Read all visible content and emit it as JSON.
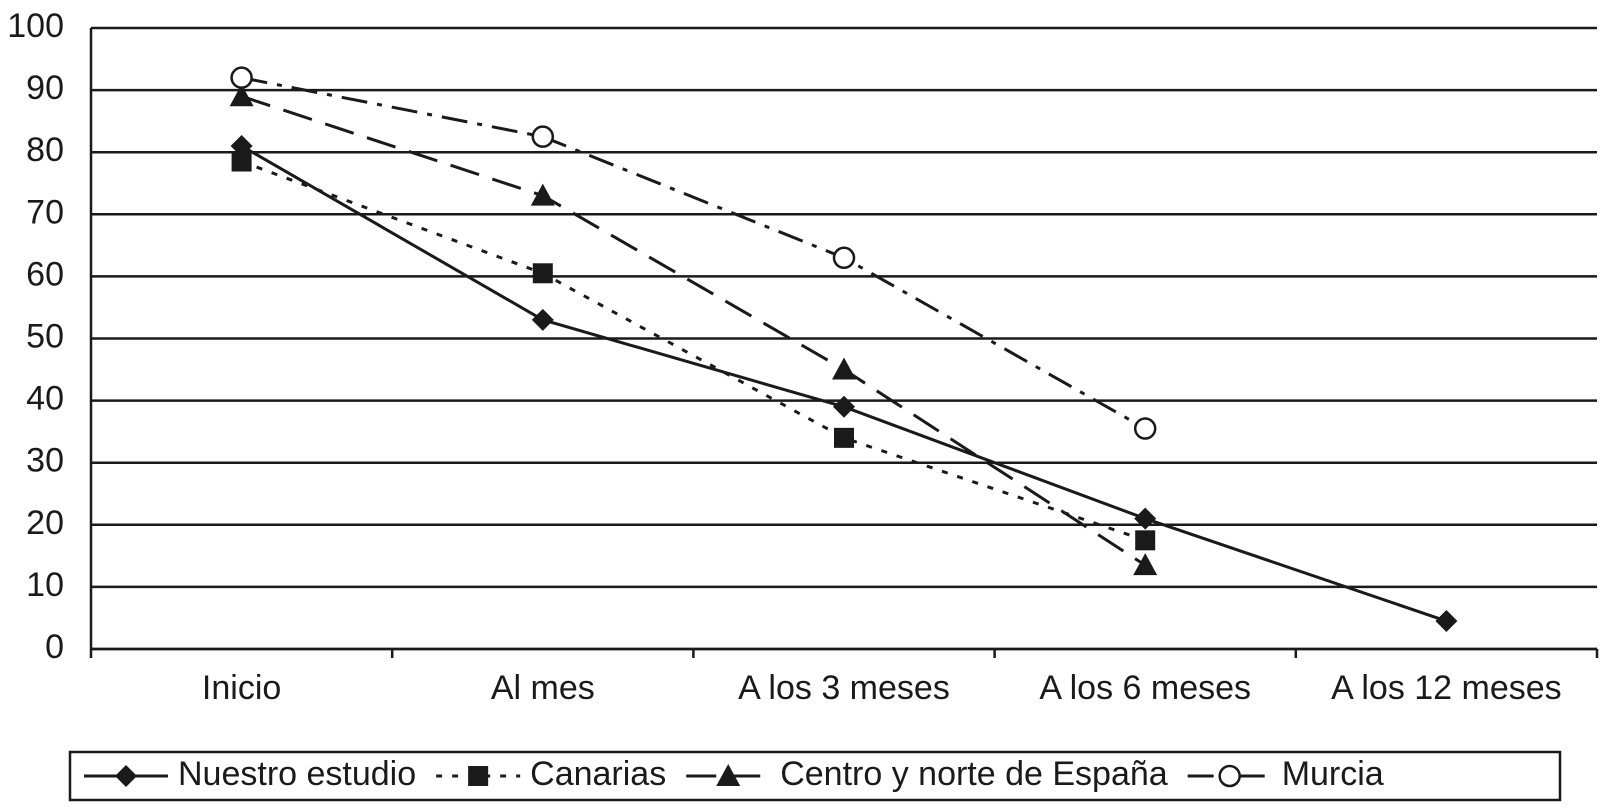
{
  "chart_data": {
    "type": "line",
    "categories": [
      "Inicio",
      "Al mes",
      "A los 3 meses",
      "A los 6 meses",
      "A los 12 meses"
    ],
    "series": [
      {
        "name": "Nuestro estudio",
        "color": "#1a1a1a",
        "marker": "diamond",
        "line_style": "solid",
        "values": [
          81,
          53,
          39,
          21,
          4.5
        ]
      },
      {
        "name": "Canarias",
        "color": "#1a1a1a",
        "marker": "square",
        "line_style": "dotted",
        "values": [
          78.5,
          60.5,
          34,
          17.5,
          null
        ]
      },
      {
        "name": "Centro y norte de España",
        "color": "#1a1a1a",
        "marker": "triangle",
        "line_style": "dashed",
        "values": [
          89,
          73,
          45,
          13.5,
          null
        ]
      },
      {
        "name": "Murcia",
        "color": "#1a1a1a",
        "marker": "circle",
        "line_style": "dashdot",
        "values": [
          92,
          82.5,
          63,
          35.5,
          null
        ]
      }
    ],
    "ylim": [
      0,
      100
    ],
    "yticks": [
      0,
      10,
      20,
      30,
      40,
      50,
      60,
      70,
      80,
      90,
      100
    ],
    "grid": true,
    "legend": "bottom"
  }
}
